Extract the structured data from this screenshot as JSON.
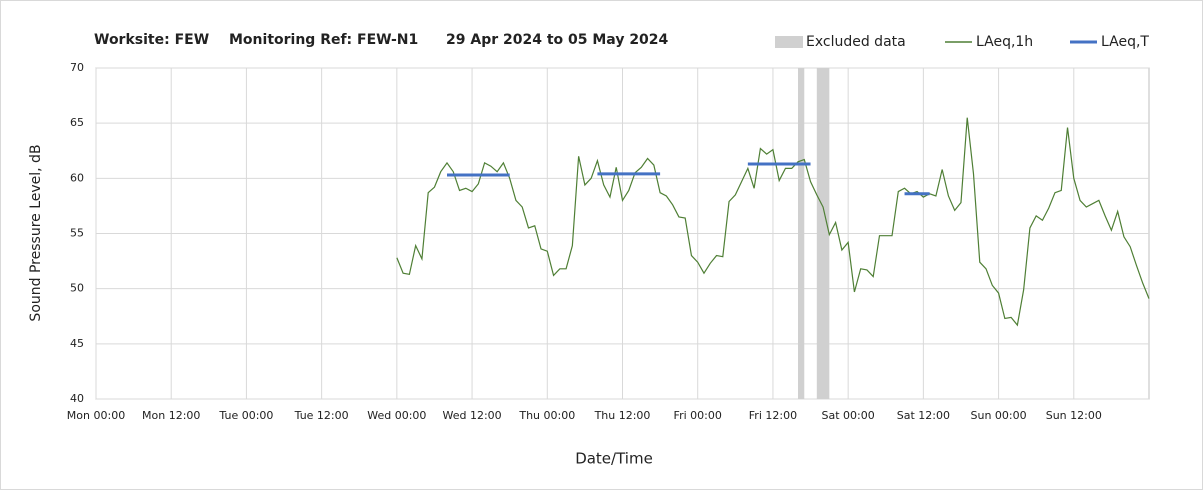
{
  "chart_data": {
    "type": "line",
    "title_parts": [
      "Worksite: FEW",
      "Monitoring Ref: FEW-N1",
      "29 Apr 2024 to 05 May 2024"
    ],
    "ylabel": "Sound Pressure Level, dB",
    "xlabel": "Date/Time",
    "xlim": [
      0,
      168
    ],
    "xticks": [
      {
        "value": 0,
        "label": "Mon 00:00"
      },
      {
        "value": 12,
        "label": "Mon 12:00"
      },
      {
        "value": 24,
        "label": "Tue 00:00"
      },
      {
        "value": 36,
        "label": "Tue 12:00"
      },
      {
        "value": 48,
        "label": "Wed 00:00"
      },
      {
        "value": 60,
        "label": "Wed 12:00"
      },
      {
        "value": 72,
        "label": "Thu 00:00"
      },
      {
        "value": 84,
        "label": "Thu 12:00"
      },
      {
        "value": 96,
        "label": "Fri 00:00"
      },
      {
        "value": 108,
        "label": "Fri 12:00"
      },
      {
        "value": 120,
        "label": "Sat 00:00"
      },
      {
        "value": 132,
        "label": "Sat 12:00"
      },
      {
        "value": 144,
        "label": "Sun 00:00"
      },
      {
        "value": 156,
        "label": "Sun 12:00"
      }
    ],
    "ylim": [
      40,
      70
    ],
    "yticks": [
      40,
      45,
      50,
      55,
      60,
      65,
      70
    ],
    "grid": true,
    "excluded": {
      "name": "Excluded data",
      "color": "#d0d0d0",
      "ranges": [
        [
          112,
          113
        ],
        [
          115,
          117
        ]
      ]
    },
    "series": [
      {
        "name": "LAeq,1h",
        "color": "#4f7f35",
        "x": [
          48,
          49,
          50,
          51,
          52,
          53,
          54,
          55,
          56,
          57,
          58,
          59,
          60,
          61,
          62,
          63,
          64,
          65,
          66,
          67,
          68,
          69,
          70,
          71,
          72,
          73,
          74,
          75,
          76,
          77,
          78,
          79,
          80,
          81,
          82,
          83,
          84,
          85,
          86,
          87,
          88,
          89,
          90,
          91,
          92,
          93,
          94,
          95,
          96,
          97,
          98,
          99,
          100,
          101,
          102,
          103,
          104,
          105,
          106,
          107,
          108,
          109,
          110,
          111,
          112,
          113,
          114,
          115,
          116,
          117,
          118,
          119,
          120,
          121,
          122,
          123,
          124,
          125,
          126,
          127,
          128,
          129,
          130,
          131,
          132,
          133,
          134,
          135,
          136,
          137,
          138,
          139,
          140,
          141,
          142,
          143,
          144,
          145,
          146,
          147,
          148,
          149,
          150,
          151,
          152,
          153,
          154,
          155,
          156,
          157,
          158,
          159,
          160,
          161,
          162,
          163,
          164,
          165,
          166,
          167,
          168
        ],
        "values": [
          52.8,
          51.4,
          51.3,
          53.9,
          52.7,
          58.7,
          59.2,
          60.6,
          61.4,
          60.6,
          58.9,
          59.1,
          58.8,
          59.5,
          61.4,
          61.1,
          60.6,
          61.4,
          60.0,
          58.0,
          57.4,
          55.5,
          55.7,
          53.6,
          53.4,
          51.2,
          51.8,
          51.8,
          53.9,
          62.0,
          59.4,
          60.0,
          61.6,
          59.4,
          58.3,
          61.0,
          58.0,
          58.9,
          60.5,
          61.0,
          61.8,
          61.2,
          58.7,
          58.4,
          57.6,
          56.5,
          56.4,
          53.0,
          52.4,
          51.4,
          52.3,
          53.0,
          52.9,
          57.9,
          58.5,
          59.7,
          60.9,
          59.1,
          62.7,
          62.2,
          62.6,
          59.8,
          60.9,
          60.9,
          61.5,
          61.7,
          59.7,
          58.5,
          57.4,
          54.9,
          56.0,
          53.5,
          54.2,
          49.7,
          51.8,
          51.7,
          51.1,
          54.8,
          54.8,
          54.8,
          58.8,
          59.1,
          58.6,
          58.8,
          58.3,
          58.6,
          58.4,
          60.8,
          58.4,
          57.1,
          57.8,
          65.5,
          60.4,
          52.4,
          51.8,
          50.3,
          49.6,
          47.3,
          47.4,
          46.7,
          49.9,
          55.5,
          56.6,
          56.2,
          57.3,
          58.7,
          58.9,
          64.6,
          60.0,
          58.0,
          57.4,
          57.7,
          58.0,
          56.6,
          55.3,
          57.0,
          54.7,
          53.8,
          52.1,
          50.5,
          49.1
        ]
      },
      {
        "name": "LAeq,T",
        "color": "#4472c4",
        "segments": [
          {
            "x": [
              56,
              66
            ],
            "value": 60.3
          },
          {
            "x": [
              80,
              90
            ],
            "value": 60.4
          },
          {
            "x": [
              104,
              114
            ],
            "value": 61.3
          },
          {
            "x": [
              129,
              133
            ],
            "value": 58.6
          }
        ]
      }
    ]
  }
}
